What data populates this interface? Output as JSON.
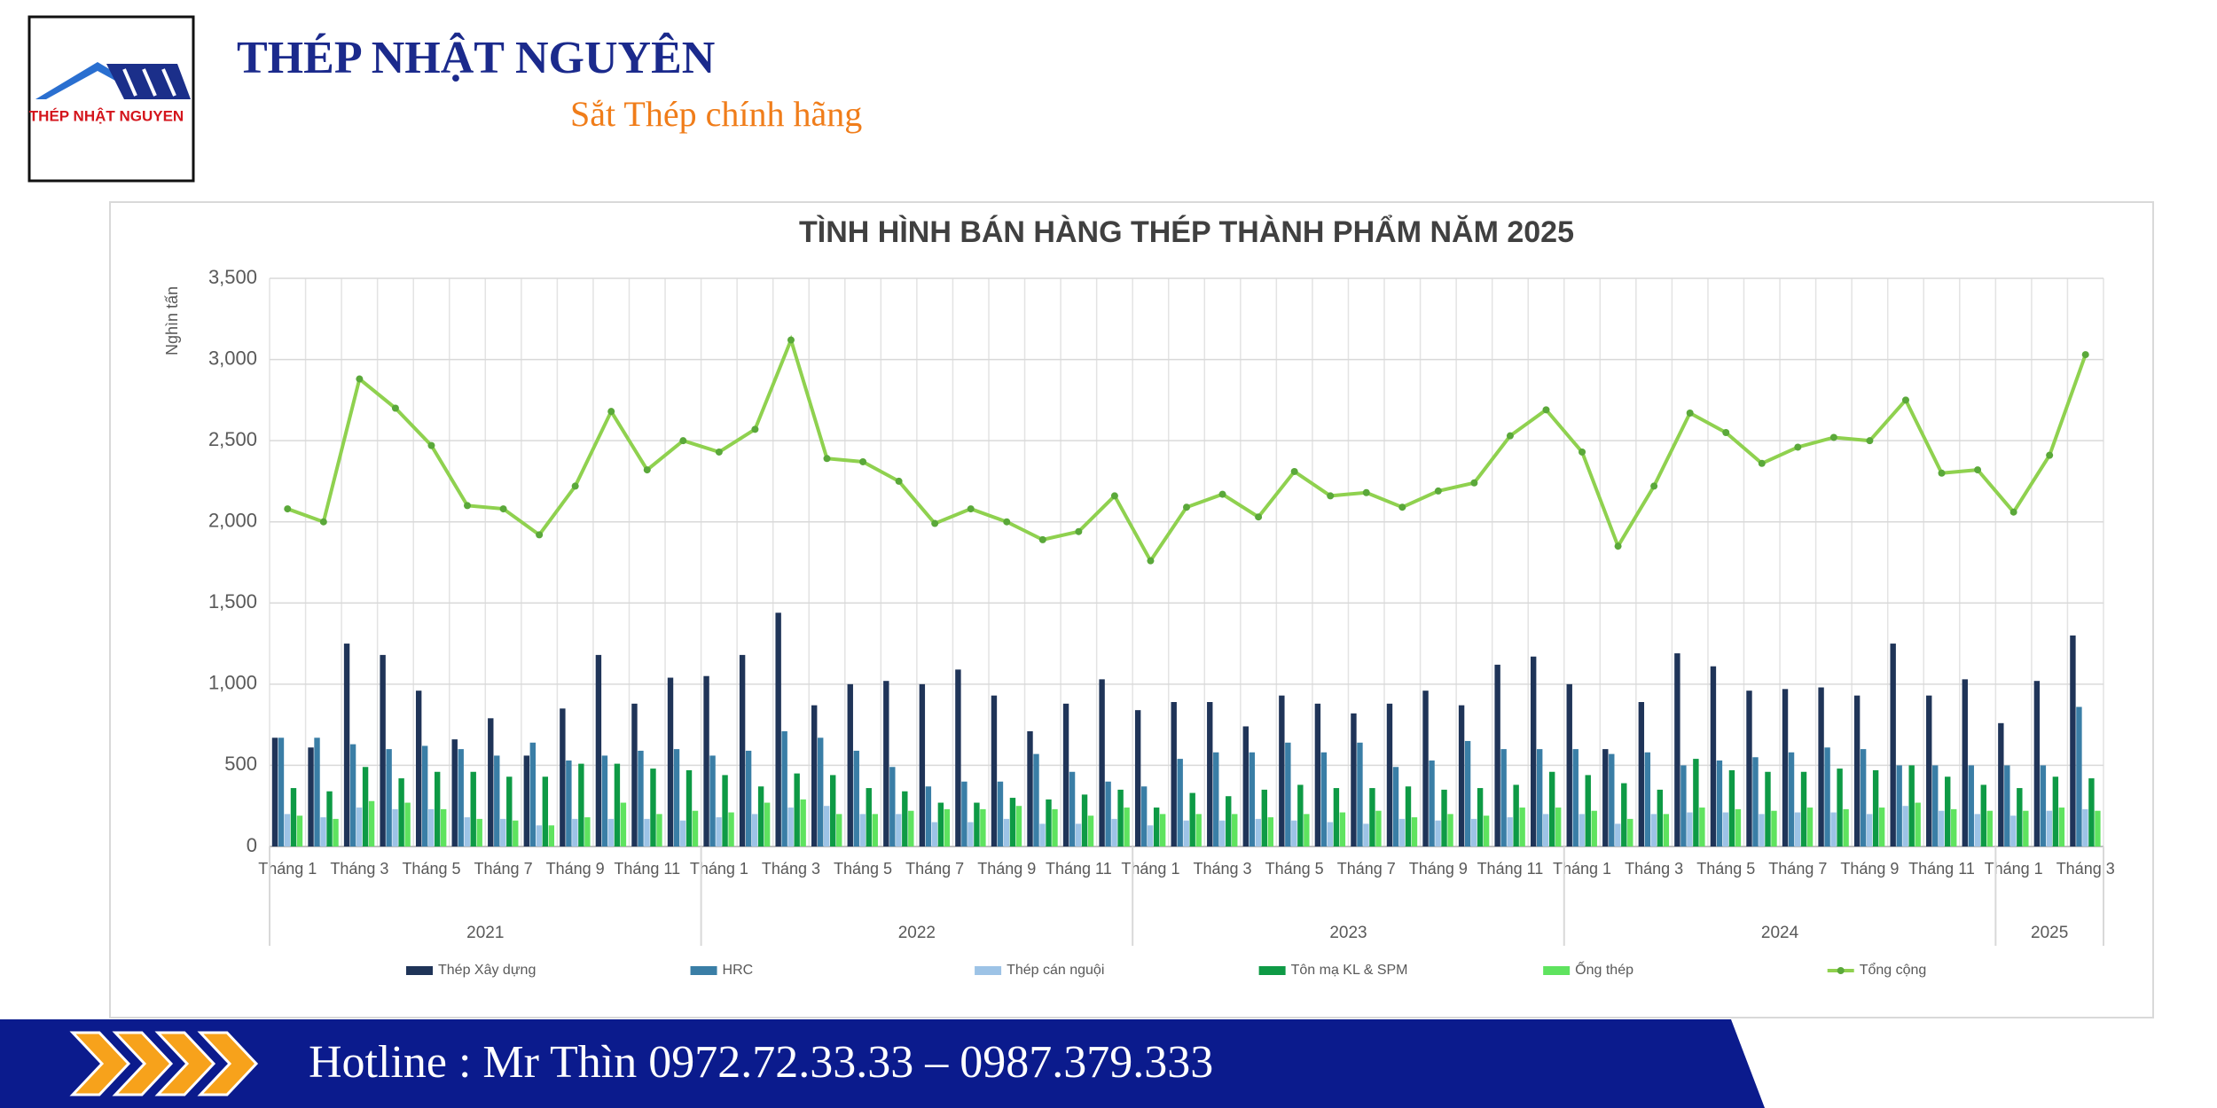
{
  "header": {
    "logo_text": "THÉP NHẬT NGUYEN",
    "title": "THÉP NHẬT NGUYÊN",
    "subtitle": "Sắt Thép chính hãng"
  },
  "chart_data": {
    "type": "bar",
    "title": "TÌNH HÌNH BÁN HÀNG THÉP THÀNH PHẨM NĂM 2025",
    "y_label": "Nghìn tấn",
    "categories": [
      "Tháng 1",
      null,
      "Tháng 3",
      null,
      "Tháng 5",
      null,
      "Tháng 7",
      null,
      "Tháng 9",
      null,
      "Tháng 11",
      null,
      "Tháng 1",
      null,
      "Tháng 3",
      null,
      "Tháng 5",
      null,
      "Tháng 7",
      null,
      "Tháng 9",
      null,
      "Tháng 11",
      null,
      "Tháng 1",
      null,
      "Tháng 3",
      null,
      "Tháng 5",
      null,
      "Tháng 7",
      null,
      "Tháng 9",
      null,
      "Tháng 11",
      null,
      "Tháng 1",
      null,
      "Tháng 3",
      null,
      "Tháng 5",
      null,
      "Tháng 7",
      null,
      "Tháng 9",
      null,
      "Tháng 11",
      null,
      "Tháng 1",
      null,
      "Tháng 3"
    ],
    "x_groups": [
      {
        "label": "2021",
        "count": 12
      },
      {
        "label": "2022",
        "count": 12
      },
      {
        "label": "2023",
        "count": 12
      },
      {
        "label": "2024",
        "count": 12
      },
      {
        "label": "2025",
        "count": 3
      }
    ],
    "series": [
      {
        "name": "Thép Xây dựng",
        "type": "bar",
        "color": "#1f3458",
        "values": [
          670,
          610,
          1250,
          1180,
          960,
          660,
          790,
          560,
          850,
          1180,
          880,
          1040,
          1050,
          1180,
          1440,
          870,
          1000,
          1020,
          1000,
          1090,
          930,
          710,
          880,
          1030,
          840,
          890,
          890,
          740,
          930,
          880,
          820,
          880,
          960,
          870,
          1120,
          1170,
          1000,
          600,
          890,
          1190,
          1110,
          960,
          970,
          980,
          930,
          1250,
          930,
          1030,
          760,
          1020,
          1300
        ]
      },
      {
        "name": "HRC",
        "type": "bar",
        "color": "#3a7ea6",
        "values": [
          670,
          670,
          630,
          600,
          620,
          600,
          560,
          640,
          530,
          560,
          590,
          600,
          560,
          590,
          710,
          670,
          590,
          490,
          370,
          400,
          400,
          570,
          460,
          400,
          370,
          540,
          580,
          580,
          640,
          580,
          640,
          490,
          530,
          650,
          600,
          600,
          600,
          570,
          580,
          500,
          530,
          550,
          580,
          610,
          600,
          500,
          500,
          500,
          500,
          500,
          860
        ]
      },
      {
        "name": "Thép cán nguội",
        "type": "bar",
        "color": "#9dc3e6",
        "values": [
          200,
          180,
          240,
          230,
          230,
          180,
          170,
          130,
          170,
          170,
          170,
          160,
          180,
          200,
          240,
          250,
          200,
          200,
          150,
          150,
          170,
          140,
          140,
          170,
          130,
          160,
          160,
          170,
          160,
          150,
          140,
          170,
          160,
          170,
          180,
          200,
          200,
          140,
          200,
          210,
          210,
          200,
          210,
          210,
          200,
          250,
          220,
          200,
          190,
          220,
          230
        ]
      },
      {
        "name": "Tôn mạ KL & SPM",
        "type": "bar",
        "color": "#0e9a45",
        "values": [
          360,
          340,
          490,
          420,
          460,
          460,
          430,
          430,
          510,
          510,
          480,
          470,
          440,
          370,
          450,
          440,
          360,
          340,
          270,
          270,
          300,
          290,
          320,
          350,
          240,
          330,
          310,
          350,
          380,
          360,
          360,
          370,
          350,
          360,
          380,
          460,
          440,
          390,
          350,
          540,
          470,
          460,
          460,
          480,
          470,
          500,
          430,
          380,
          360,
          430,
          420
        ]
      },
      {
        "name": "Ống thép",
        "type": "bar",
        "color": "#5fe35f",
        "values": [
          190,
          170,
          280,
          270,
          230,
          170,
          160,
          130,
          180,
          270,
          200,
          220,
          210,
          270,
          290,
          200,
          200,
          220,
          230,
          230,
          250,
          230,
          190,
          240,
          200,
          200,
          200,
          180,
          200,
          210,
          220,
          180,
          200,
          190,
          240,
          240,
          220,
          170,
          200,
          240,
          230,
          220,
          240,
          230,
          240,
          270,
          230,
          220,
          220,
          240,
          220
        ]
      },
      {
        "name": "Tổng cộng",
        "type": "line",
        "color": "#8fd14f",
        "values": [
          2080,
          2000,
          2880,
          2700,
          2470,
          2100,
          2080,
          1920,
          2220,
          2680,
          2320,
          2500,
          2430,
          2570,
          3120,
          2390,
          2370,
          2250,
          1990,
          2080,
          2000,
          1890,
          1940,
          2160,
          1760,
          2090,
          2170,
          2030,
          2310,
          2160,
          2180,
          2090,
          2190,
          2240,
          2530,
          2690,
          2430,
          1850,
          2220,
          2670,
          2550,
          2360,
          2460,
          2520,
          2500,
          2750,
          2300,
          2320,
          2060,
          2410,
          3030
        ]
      }
    ],
    "ylim": [
      0,
      3500
    ],
    "yticks": [
      0,
      500,
      {
        "value": 1000,
        "label": "1,000"
      },
      {
        "value": 1500,
        "label": "1,500"
      },
      {
        "value": 2000,
        "label": "2,000"
      },
      {
        "value": 2500,
        "label": "2,500"
      },
      {
        "value": 3000,
        "label": "3,000"
      },
      {
        "value": 3500,
        "label": "3,500"
      }
    ],
    "grid": true,
    "legend": "bottom"
  },
  "footer": {
    "hotline": "Hotline : Mr Thìn 0972.72.33.33 – 0987.379.333"
  }
}
